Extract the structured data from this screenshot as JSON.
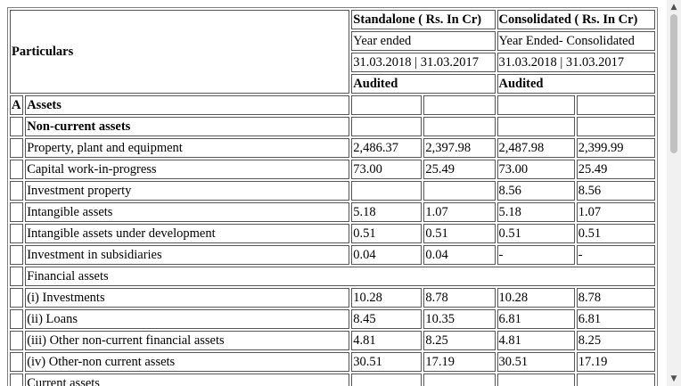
{
  "header": {
    "particulars": "Particulars",
    "standalone_title": "Standalone ( Rs. In Cr)",
    "consolidated_title": "Consolidated ( Rs. In Cr)",
    "standalone_period": "Year ended",
    "consolidated_period": "Year Ended- Consolidated",
    "standalone_dates": "31.03.2018 | 31.03.2017",
    "consolidated_dates": "31.03.2018 | 31.03.2017",
    "standalone_status": "Audited",
    "consolidated_status": "Audited"
  },
  "section": {
    "letter": "A",
    "title": "Assets"
  },
  "rows": [
    {
      "label": "Non-current assets",
      "bold": true,
      "values": [
        "",
        "",
        "",
        ""
      ]
    },
    {
      "label": "Property, plant and equipment",
      "values": [
        "2,486.37",
        "2,397.98",
        "2,487.98",
        "2,399.99"
      ]
    },
    {
      "label": "Capital work-in-progress",
      "values": [
        "73.00",
        "25.49",
        "73.00",
        "25.49"
      ]
    },
    {
      "label": "Investment property",
      "values": [
        "",
        "",
        "8.56",
        "8.56"
      ]
    },
    {
      "label": "Intangible assets",
      "values": [
        "5.18",
        "1.07",
        "5.18",
        "1.07"
      ]
    },
    {
      "label": "Intangible assets under development",
      "values": [
        "0.51",
        "0.51",
        "0.51",
        "0.51"
      ]
    },
    {
      "label": "Investment in subsidiaries",
      "values": [
        "0.04",
        "0.04",
        "-",
        "-"
      ]
    },
    {
      "label": "Financial assets",
      "values": null
    },
    {
      "label": "(i) Investments",
      "values": [
        "10.28",
        "8.78",
        "10.28",
        "8.78"
      ]
    },
    {
      "label": "(ii) Loans",
      "values": [
        "8.45",
        "10.35",
        "6.81",
        "6.81"
      ]
    },
    {
      "label": "(iii) Other non-current financial assets",
      "values": [
        "4.81",
        "8.25",
        "4.81",
        "8.25"
      ]
    },
    {
      "label": "(iv) Other-non current assets",
      "values": [
        "30.51",
        "17.19",
        "30.51",
        "17.19"
      ]
    },
    {
      "label": "Current assets",
      "values": [
        "",
        "",
        "",
        ""
      ]
    }
  ],
  "scrollbar": {
    "up_icon": "▲",
    "down_icon": "▼"
  }
}
